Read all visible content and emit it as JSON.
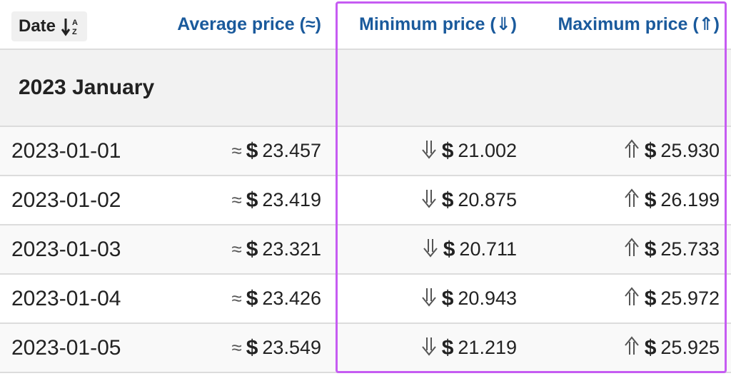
{
  "header": {
    "date_label": "Date",
    "sort_icon_letters": [
      "A",
      "Z"
    ],
    "average_label": "Average price (≈)",
    "minimum_label": "Minimum price (⇓)",
    "maximum_label": "Maximum price (⇑)"
  },
  "group": {
    "title": "2023 January"
  },
  "symbols": {
    "avg": "≈",
    "currency": "$"
  },
  "rows": [
    {
      "date": "2023-01-01",
      "avg": "23.457",
      "min": "21.002",
      "max": "25.930"
    },
    {
      "date": "2023-01-02",
      "avg": "23.419",
      "min": "20.875",
      "max": "26.199"
    },
    {
      "date": "2023-01-03",
      "avg": "23.321",
      "min": "20.711",
      "max": "25.733"
    },
    {
      "date": "2023-01-04",
      "avg": "23.426",
      "min": "20.943",
      "max": "25.972"
    },
    {
      "date": "2023-01-05",
      "avg": "23.549",
      "min": "21.219",
      "max": "25.925"
    }
  ],
  "colors": {
    "link": "#1a5a9c",
    "highlight": "#c65cf2",
    "group_bg": "#f2f2f2"
  }
}
